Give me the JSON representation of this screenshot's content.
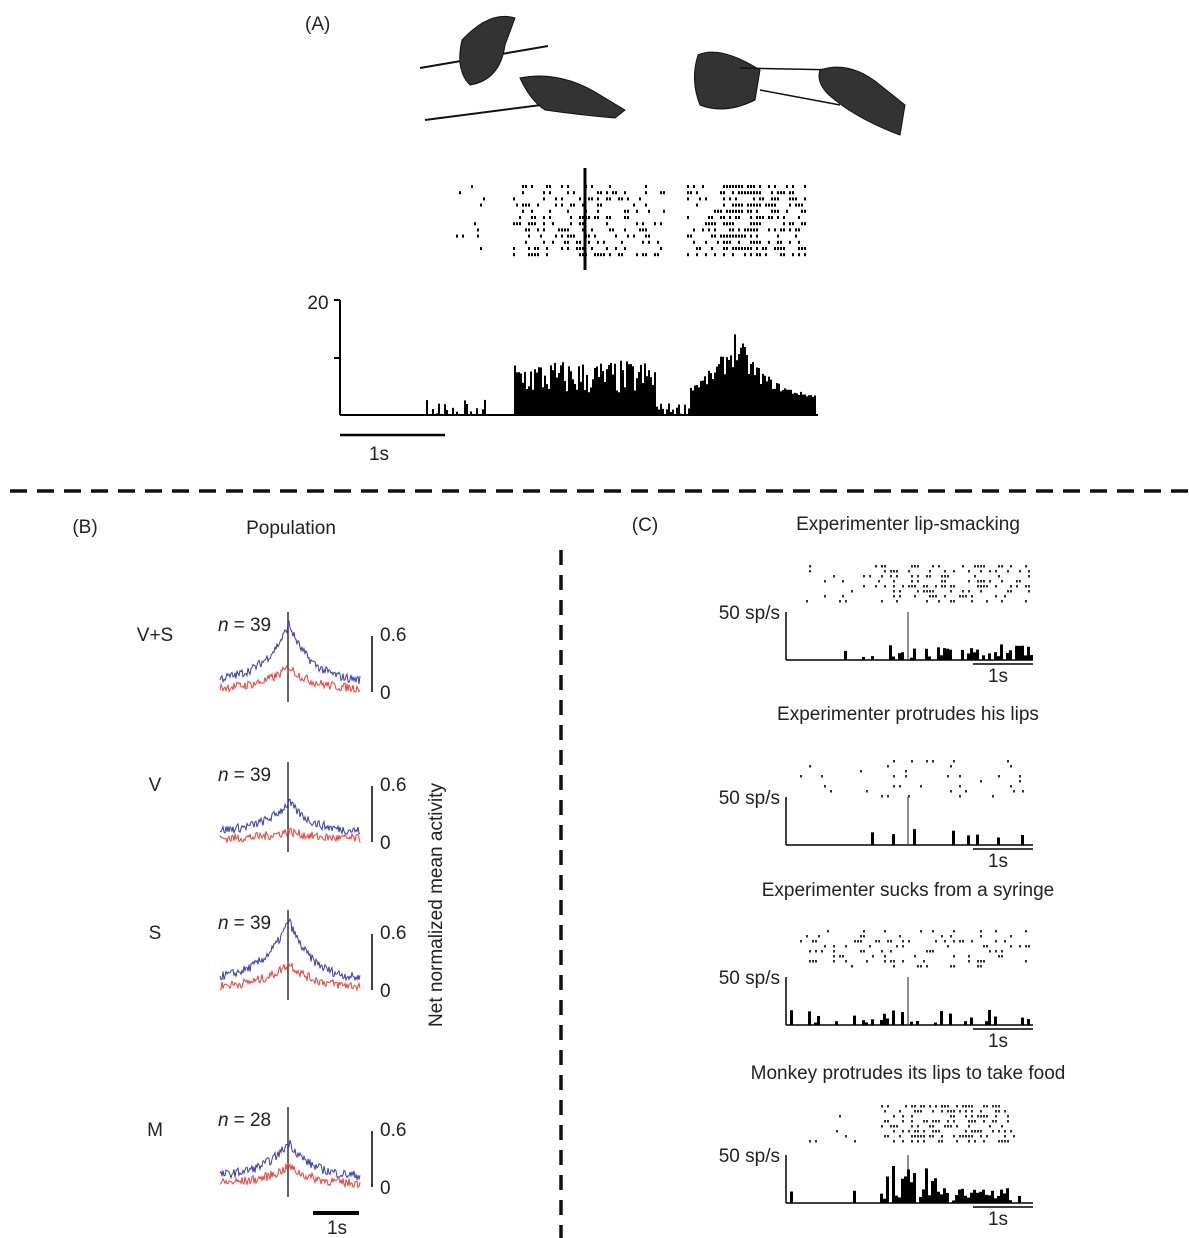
{
  "panel_a": {
    "label": "(A)",
    "y_tick": "20",
    "scale_bar": "1s"
  },
  "panel_b": {
    "label": "(B)",
    "title": "Population",
    "y_axis_label": "Net normalized mean activity",
    "scale_bar": "1s",
    "rows": [
      {
        "condition": "V+S",
        "n_symbol": "n",
        "n_text": "= 39",
        "scale_top": "0.6",
        "scale_bottom": "0"
      },
      {
        "condition": "V",
        "n_symbol": "n",
        "n_text": "= 39",
        "scale_top": "0.6",
        "scale_bottom": "0"
      },
      {
        "condition": "S",
        "n_symbol": "n",
        "n_text": "= 39",
        "scale_top": "0.6",
        "scale_bottom": "0"
      },
      {
        "condition": "M",
        "n_symbol": "n",
        "n_text": "= 28",
        "scale_top": "0.6",
        "scale_bottom": "0"
      }
    ]
  },
  "panel_c": {
    "label": "(C)",
    "rows": [
      {
        "title": "Experimenter lip-smacking",
        "rate_label": "50 sp/s",
        "scale_bar": "1s"
      },
      {
        "title": "Experimenter protrudes his lips",
        "rate_label": "50 sp/s",
        "scale_bar": "1s"
      },
      {
        "title": "Experimenter sucks from a syringe",
        "rate_label": "50 sp/s",
        "scale_bar": "1s"
      },
      {
        "title": "Monkey protrudes its lips to take food",
        "rate_label": "50 sp/s",
        "scale_bar": "1s"
      }
    ]
  }
}
